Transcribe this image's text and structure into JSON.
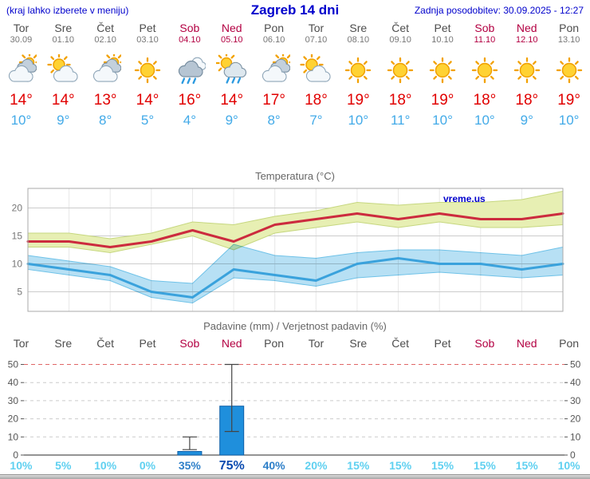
{
  "header": {
    "menu_note": "(kraj lahko izberete v meniju)",
    "title": "Zagreb 14 dni",
    "last_update": "Zadnja posodobitev: 30.09.2025 - 12:27"
  },
  "branding": {
    "watermark": "vreme.us"
  },
  "colors": {
    "link_blue": "#0000cc",
    "weekday": "#4d4d4d",
    "date_gray": "#777777",
    "weekend": "#b30042",
    "tmax": "#e10000",
    "tmin": "#42aae8",
    "prob_low": "#5fd0f0",
    "prob_mid": "#2e7fc8",
    "prob_high": "#0b4bb0"
  },
  "days": [
    {
      "name": "Tor",
      "date": "30.09",
      "weekend": false,
      "icon": "cloudy",
      "tmax": "14°",
      "tmin": "10°"
    },
    {
      "name": "Sre",
      "date": "01.10",
      "weekend": false,
      "icon": "partly-cloudy",
      "tmax": "14°",
      "tmin": "9°"
    },
    {
      "name": "Čet",
      "date": "02.10",
      "weekend": false,
      "icon": "cloudy",
      "tmax": "13°",
      "tmin": "8°"
    },
    {
      "name": "Pet",
      "date": "03.10",
      "weekend": false,
      "icon": "sunny",
      "tmax": "14°",
      "tmin": "5°"
    },
    {
      "name": "Sob",
      "date": "04.10",
      "weekend": true,
      "icon": "rain",
      "tmax": "16°",
      "tmin": "4°"
    },
    {
      "name": "Ned",
      "date": "05.10",
      "weekend": true,
      "icon": "sun-rain",
      "tmax": "14°",
      "tmin": "9°"
    },
    {
      "name": "Pon",
      "date": "06.10",
      "weekend": false,
      "icon": "cloudy",
      "tmax": "17°",
      "tmin": "8°"
    },
    {
      "name": "Tor",
      "date": "07.10",
      "weekend": false,
      "icon": "partly-cloudy",
      "tmax": "18°",
      "tmin": "7°"
    },
    {
      "name": "Sre",
      "date": "08.10",
      "weekend": false,
      "icon": "sunny",
      "tmax": "19°",
      "tmin": "10°"
    },
    {
      "name": "Čet",
      "date": "09.10",
      "weekend": false,
      "icon": "sunny",
      "tmax": "18°",
      "tmin": "11°"
    },
    {
      "name": "Pet",
      "date": "10.10",
      "weekend": false,
      "icon": "sunny",
      "tmax": "19°",
      "tmin": "10°"
    },
    {
      "name": "Sob",
      "date": "11.10",
      "weekend": true,
      "icon": "sunny",
      "tmax": "18°",
      "tmin": "10°"
    },
    {
      "name": "Ned",
      "date": "12.10",
      "weekend": true,
      "icon": "sunny",
      "tmax": "18°",
      "tmin": "9°"
    },
    {
      "name": "Pon",
      "date": "13.10",
      "weekend": false,
      "icon": "sunny",
      "tmax": "19°",
      "tmin": "10°"
    }
  ],
  "chart_data": [
    {
      "type": "line",
      "title": "Temperatura (°C)",
      "x_labels": [
        "Tor",
        "Sre",
        "Čet",
        "Pet",
        "Sob",
        "Ned",
        "Pon",
        "Tor",
        "Sre",
        "Čet",
        "Pet",
        "Sob",
        "Ned",
        "Pon"
      ],
      "ylim": [
        1.5,
        23.5
      ],
      "yticks": [
        5,
        10,
        15,
        20
      ],
      "grid": true,
      "legend_position": "none",
      "series": [
        {
          "name": "Max temperatura",
          "color": "#cc2b3e",
          "values": [
            14,
            14,
            13,
            14,
            16,
            14,
            17,
            18,
            19,
            18,
            19,
            18,
            18,
            19
          ],
          "band_upper": [
            15.5,
            15.5,
            14.5,
            15.5,
            17.5,
            17,
            18.5,
            19.5,
            21,
            20.5,
            21,
            21,
            21.5,
            23
          ],
          "band_lower": [
            13,
            13,
            12,
            13.5,
            15,
            12.5,
            15.5,
            16.5,
            17.5,
            16.5,
            17.5,
            16.5,
            16.5,
            17
          ],
          "band_color": "#e7efb3",
          "band_edge": "#c6d77f",
          "blend": false
        },
        {
          "name": "Min temperatura",
          "color": "#3aa2dc",
          "values": [
            10,
            9,
            8,
            5,
            4,
            9,
            8,
            7,
            10,
            11,
            10,
            10,
            9,
            10
          ],
          "band_upper": [
            11.5,
            10.5,
            9.5,
            7,
            6.5,
            13.5,
            11.5,
            11,
            12,
            12.5,
            12.5,
            12,
            11.5,
            13
          ],
          "band_lower": [
            9,
            8,
            7,
            4,
            3,
            7.5,
            7,
            6,
            7.5,
            8,
            8.5,
            8,
            7.5,
            8
          ],
          "band_color": "#b7e0f4",
          "band_edge": "#6fc2e8",
          "blend": true
        }
      ]
    },
    {
      "type": "bar",
      "title": "Padavine (mm) / Verjetnost padavin (%)",
      "x_labels": [
        "Tor",
        "Sre",
        "Čet",
        "Pet",
        "Sob",
        "Ned",
        "Pon",
        "Tor",
        "Sre",
        "Čet",
        "Pet",
        "Sob",
        "Ned",
        "Pon"
      ],
      "ylim": [
        0,
        52
      ],
      "yticks": [
        0,
        10,
        20,
        30,
        40,
        50
      ],
      "values_mm": [
        0,
        0,
        0,
        0,
        2,
        27,
        0,
        0,
        0,
        0,
        0,
        0,
        0,
        0
      ],
      "whiskers": [
        null,
        null,
        null,
        null,
        {
          "low": 3,
          "high": 10
        },
        {
          "low": 13,
          "high": 50
        },
        null,
        null,
        null,
        null,
        null,
        null,
        null,
        null
      ],
      "bar_color": "#1f8fdc",
      "bar_edge": "#0e5fa8",
      "probabilities": [
        "10%",
        "5%",
        "10%",
        "0%",
        "35%",
        "75%",
        "40%",
        "20%",
        "15%",
        "15%",
        "15%",
        "15%",
        "15%",
        "10%"
      ],
      "prob_levels": [
        "low",
        "low",
        "low",
        "low",
        "mid",
        "high",
        "mid",
        "low",
        "low",
        "low",
        "low",
        "low",
        "low",
        "low"
      ]
    }
  ]
}
